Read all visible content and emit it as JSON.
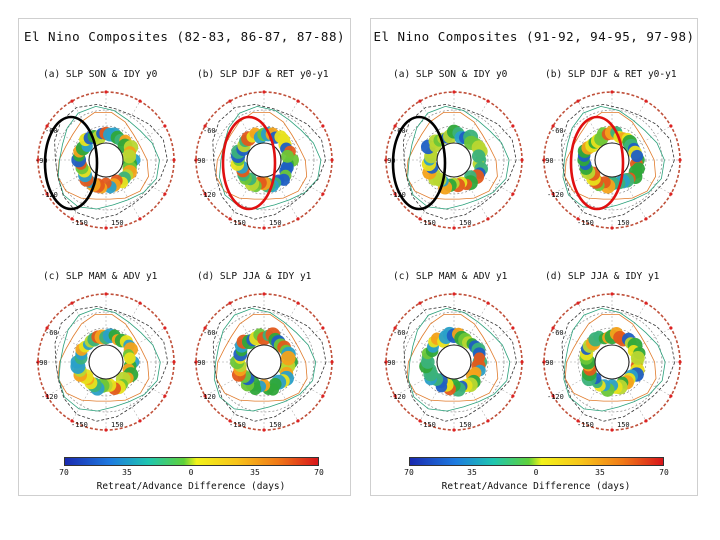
{
  "panels": [
    {
      "title": "El Nino Composites (82-83, 86-87, 87-88)",
      "subplots": [
        {
          "label": "(a) SLP SON & IDY y0",
          "lats": [
            "-60",
            "-90",
            "-120",
            "-150",
            "150"
          ],
          "highlight": "black"
        },
        {
          "label": "(b) SLP DJF & RET y0-y1",
          "lats": [
            "-60",
            "-90",
            "-120",
            "-150",
            "150"
          ],
          "highlight": "red"
        },
        {
          "label": "(c) SLP MAM & ADV y1",
          "lats": [
            "-60",
            "-90",
            "-120",
            "-150",
            "150"
          ],
          "highlight": "none"
        },
        {
          "label": "(d) SLP JJA & IDY y1",
          "lats": [
            "-60",
            "-90",
            "-120",
            "-150",
            "150"
          ],
          "highlight": "none"
        }
      ],
      "colorbar": {
        "ticks": [
          "70",
          "35",
          "0",
          "35",
          "70"
        ],
        "label": "Retreat/Advance Difference (days)"
      }
    },
    {
      "title": "El Nino Composites (91-92, 94-95, 97-98)",
      "subplots": [
        {
          "label": "(a) SLP SON & IDY y0",
          "lats": [
            "-60",
            "-90",
            "-120",
            "-150",
            "150"
          ],
          "highlight": "black"
        },
        {
          "label": "(b) SLP DJF & RET y0-y1",
          "lats": [
            "-60",
            "-90",
            "-120",
            "-150",
            "150"
          ],
          "highlight": "red"
        },
        {
          "label": "(c) SLP MAM & ADV y1",
          "lats": [
            "-60",
            "-90",
            "-120",
            "-150",
            "150"
          ],
          "highlight": "none"
        },
        {
          "label": "(d) SLP JJA & IDY y1",
          "lats": [
            "-60",
            "-90",
            "-120",
            "-150",
            "150"
          ],
          "highlight": "none"
        }
      ],
      "colorbar": {
        "ticks": [
          "70",
          "35",
          "0",
          "35",
          "70"
        ],
        "label": "Retreat/Advance Difference (days)"
      }
    }
  ],
  "colors": {
    "highlight_black": "#000000",
    "highlight_red": "#e01010",
    "ring_outline": "#c0503a"
  }
}
